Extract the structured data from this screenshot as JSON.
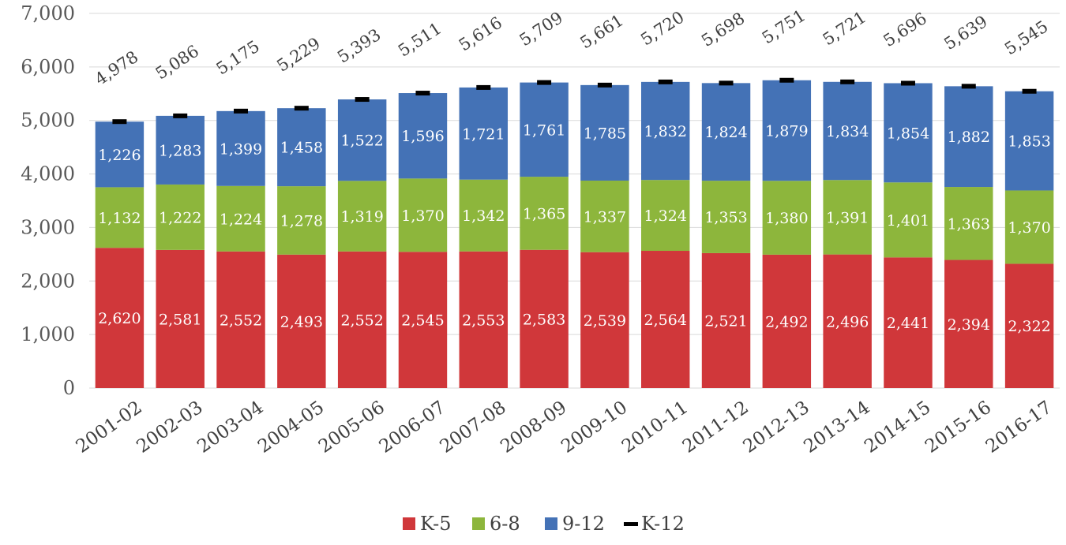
{
  "chart_data": {
    "type": "bar",
    "stacked": true,
    "categories": [
      "2001-02",
      "2002-03",
      "2003-04",
      "2004-05",
      "2005-06",
      "2006-07",
      "2007-08",
      "2008-09",
      "2009-10",
      "2010-11",
      "2011-12",
      "2012-13",
      "2013-14",
      "2014-15",
      "2015-16",
      "2016-17"
    ],
    "series": [
      {
        "name": "K-5",
        "color": "#D0373A",
        "values": [
          2620,
          2581,
          2552,
          2493,
          2552,
          2545,
          2553,
          2583,
          2539,
          2564,
          2521,
          2492,
          2496,
          2441,
          2394,
          2322
        ]
      },
      {
        "name": "6-8",
        "color": "#8DB63C",
        "values": [
          1132,
          1222,
          1224,
          1278,
          1319,
          1370,
          1342,
          1365,
          1337,
          1324,
          1353,
          1380,
          1391,
          1401,
          1363,
          1370
        ]
      },
      {
        "name": "9-12",
        "color": "#4472B6",
        "values": [
          1226,
          1283,
          1399,
          1458,
          1522,
          1596,
          1721,
          1761,
          1785,
          1832,
          1824,
          1879,
          1834,
          1854,
          1882,
          1853
        ]
      }
    ],
    "totals": {
      "name": "K-12",
      "color": "#000000",
      "values": [
        4978,
        5086,
        5175,
        5229,
        5393,
        5511,
        5616,
        5709,
        5661,
        5720,
        5698,
        5751,
        5721,
        5696,
        5639,
        5545
      ]
    },
    "yticks": [
      "0",
      "1,000",
      "2,000",
      "3,000",
      "4,000",
      "5,000",
      "6,000",
      "7,000"
    ],
    "ylim": [
      0,
      7000
    ],
    "grid": true,
    "legend_position": "bottom"
  }
}
